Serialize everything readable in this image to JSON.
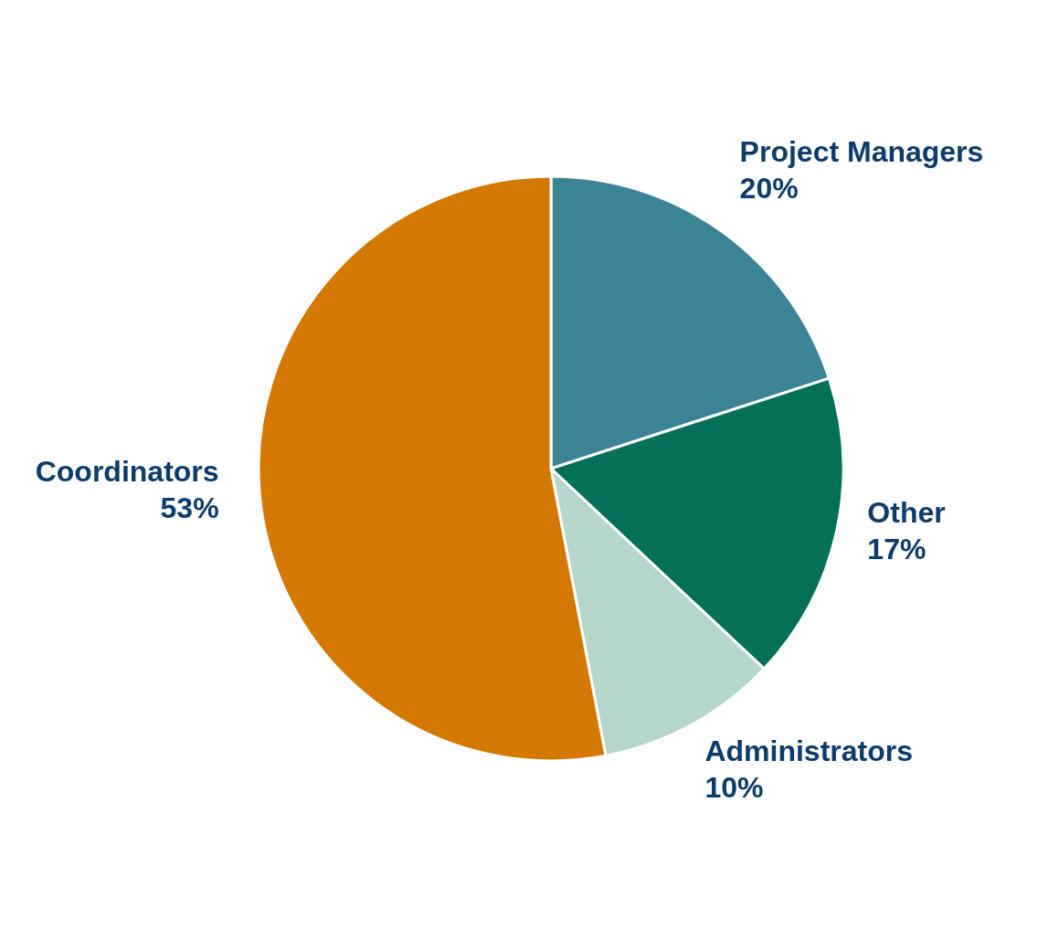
{
  "chart_data": {
    "type": "pie",
    "categories": [
      "Project Managers",
      "Other",
      "Administrators",
      "Coordinators"
    ],
    "values": [
      20,
      17,
      10,
      53
    ],
    "colors": [
      "#3a8496",
      "#047058",
      "#b5d6cc",
      "#d47800"
    ],
    "value_labels": [
      "20%",
      "17%",
      "10%",
      "53%"
    ]
  }
}
